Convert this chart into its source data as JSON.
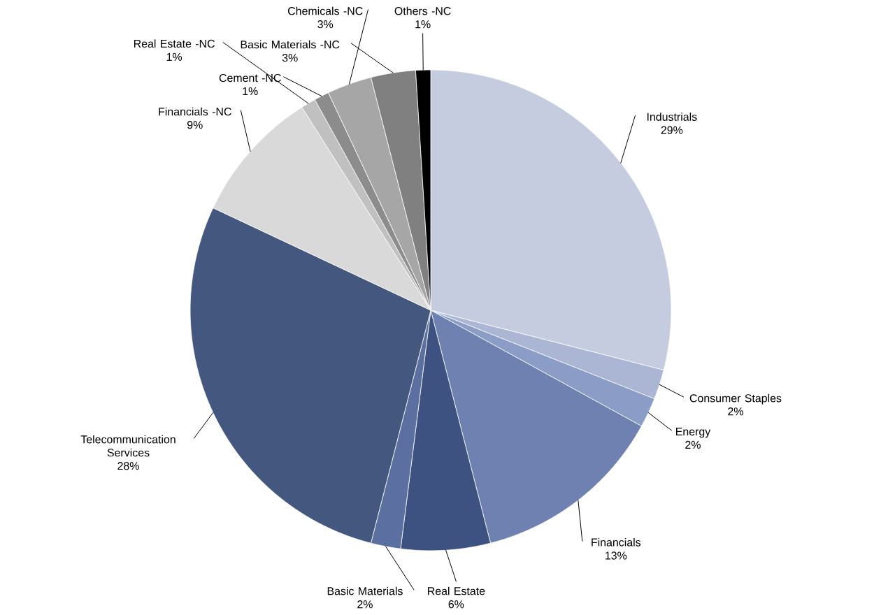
{
  "chart_data": {
    "type": "pie",
    "categories": [
      "Industrials",
      "Consumer Staples",
      "Energy",
      "Financials",
      "Real Estate",
      "Basic Materials",
      "Telecommunication Services",
      "Financials -NC",
      "Real Estate -NC",
      "Cement -NC",
      "Chemicals -NC",
      "Basic Materials -NC",
      "Others -NC"
    ],
    "values": [
      29,
      2,
      2,
      13,
      6,
      2,
      28,
      9,
      1,
      1,
      3,
      3,
      1
    ],
    "value_labels": [
      "29%",
      "2%",
      "2%",
      "13%",
      "6%",
      "2%",
      "28%",
      "9%",
      "1%",
      "1%",
      "3%",
      "3%",
      "1%"
    ],
    "colors": [
      "#c5cce0",
      "#aab6d4",
      "#8b9cc6",
      "#6f81b0",
      "#3e5282",
      "#5b6fa0",
      "#44577f",
      "#d9d9d9",
      "#c0c0c0",
      "#8c8c8c",
      "#a6a6a6",
      "#808080",
      "#000000"
    ]
  }
}
